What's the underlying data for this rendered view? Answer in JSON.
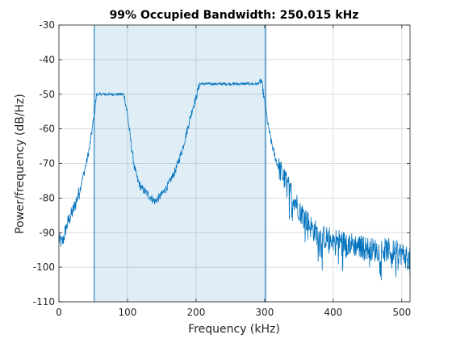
{
  "chart_data": {
    "type": "line",
    "title": "99% Occupied Bandwidth: 250.015 kHz",
    "xlabel": "Frequency (kHz)",
    "ylabel": "Power/frequency (dB/Hz)",
    "xlim": [
      0,
      512
    ],
    "ylim": [
      -110,
      -30
    ],
    "xticks": [
      0,
      100,
      200,
      300,
      400,
      500
    ],
    "yticks": [
      -110,
      -100,
      -90,
      -80,
      -70,
      -60,
      -50,
      -40,
      -30
    ],
    "grid": true,
    "occupied_band": {
      "lower_khz": 51.5,
      "upper_khz": 301.5
    },
    "series": [
      {
        "x": [
          0,
          5,
          10,
          15,
          20,
          25,
          30,
          35,
          40,
          45,
          50,
          55,
          60,
          70,
          80,
          90,
          95,
          100,
          105,
          110,
          115,
          120,
          130,
          140,
          150,
          160,
          170,
          180,
          190,
          195,
          200,
          205,
          210,
          220,
          240,
          260,
          280,
          290,
          295,
          300,
          305,
          310,
          315,
          320,
          330,
          340,
          350,
          360,
          370,
          380,
          400,
          420,
          440,
          460,
          480,
          500,
          512
        ],
        "values": [
          -92,
          -93,
          -89,
          -86,
          -84,
          -81,
          -78,
          -74,
          -70,
          -65,
          -58,
          -50,
          -50,
          -50,
          -50,
          -50,
          -50,
          -56,
          -64,
          -71,
          -75,
          -77,
          -79,
          -81,
          -79,
          -76,
          -72,
          -66,
          -58,
          -54,
          -51,
          -47,
          -47,
          -47,
          -47,
          -47,
          -47,
          -47,
          -46,
          -52,
          -59,
          -64,
          -68,
          -71,
          -75,
          -79,
          -83,
          -86,
          -89,
          -91,
          -92,
          -93,
          -94,
          -95,
          -95,
          -96,
          -98
        ]
      }
    ]
  }
}
